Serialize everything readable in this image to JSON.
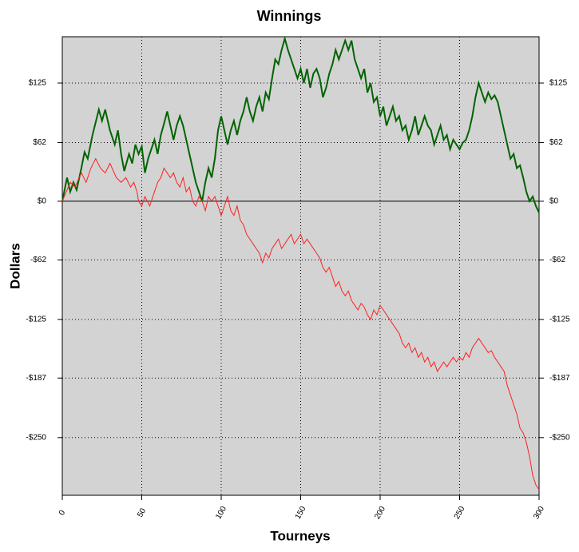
{
  "chart_data": {
    "type": "line",
    "title": "Winnings",
    "xlabel": "Tourneys",
    "ylabel": "Dollars",
    "xlim": [
      0,
      300
    ],
    "xticks": [
      0,
      50,
      100,
      150,
      200,
      250,
      300
    ],
    "ylim": [
      -311,
      174
    ],
    "yticks": [
      {
        "value": -250,
        "label": "-$250"
      },
      {
        "value": -187,
        "label": "-$187"
      },
      {
        "value": -125,
        "label": "-$125"
      },
      {
        "value": -62,
        "label": "-$62"
      },
      {
        "value": 0,
        "label": "$0"
      },
      {
        "value": 62,
        "label": "$62"
      },
      {
        "value": 125,
        "label": "$125"
      }
    ],
    "grid": true,
    "series": [
      {
        "color": "#006400",
        "x": [
          0,
          3,
          5,
          7,
          9,
          12,
          14,
          16,
          19,
          23,
          25,
          27,
          30,
          33,
          35,
          37,
          39,
          42,
          44,
          46,
          48,
          50,
          52,
          54,
          56,
          58,
          60,
          62,
          64,
          66,
          68,
          70,
          72,
          74,
          76,
          78,
          80,
          82,
          84,
          86,
          88,
          90,
          92,
          94,
          96,
          98,
          100,
          102,
          104,
          106,
          108,
          110,
          112,
          114,
          116,
          118,
          120,
          122,
          124,
          126,
          128,
          130,
          132,
          134,
          136,
          138,
          140,
          142,
          144,
          146,
          148,
          150,
          152,
          154,
          156,
          158,
          160,
          162,
          164,
          166,
          168,
          170,
          172,
          174,
          176,
          178,
          180,
          182,
          184,
          186,
          188,
          190,
          192,
          194,
          196,
          198,
          200,
          202,
          204,
          206,
          208,
          210,
          212,
          214,
          216,
          218,
          220,
          222,
          224,
          226,
          228,
          230,
          232,
          234,
          236,
          238,
          240,
          242,
          244,
          246,
          248,
          250,
          252,
          254,
          256,
          258,
          260,
          262,
          264,
          266,
          268,
          270,
          272,
          274,
          276,
          278,
          280,
          282,
          284,
          286,
          288,
          290,
          292,
          294,
          296,
          298,
          300
        ],
        "values": [
          0,
          25,
          10,
          20,
          12,
          35,
          52,
          45,
          70,
          97,
          85,
          97,
          75,
          60,
          75,
          50,
          32,
          50,
          40,
          60,
          50,
          58,
          30,
          45,
          55,
          65,
          50,
          70,
          82,
          95,
          80,
          65,
          80,
          90,
          80,
          65,
          50,
          35,
          20,
          10,
          0,
          20,
          35,
          25,
          45,
          75,
          90,
          75,
          60,
          75,
          85,
          70,
          85,
          95,
          110,
          95,
          85,
          100,
          110,
          95,
          115,
          108,
          130,
          150,
          145,
          160,
          172,
          160,
          150,
          140,
          130,
          140,
          125,
          140,
          120,
          135,
          140,
          130,
          110,
          120,
          135,
          145,
          160,
          150,
          160,
          170,
          160,
          170,
          150,
          140,
          130,
          140,
          115,
          125,
          105,
          110,
          90,
          100,
          80,
          90,
          100,
          85,
          90,
          75,
          80,
          65,
          75,
          90,
          70,
          80,
          90,
          80,
          75,
          60,
          70,
          80,
          65,
          70,
          55,
          65,
          60,
          55,
          62,
          65,
          75,
          90,
          110,
          125,
          115,
          105,
          115,
          108,
          112,
          105,
          90,
          75,
          60,
          45,
          50,
          35,
          38,
          25,
          10,
          0,
          5,
          -5,
          -12
        ]
      },
      {
        "color": "#ff2020",
        "x": [
          0,
          5,
          8,
          12,
          15,
          18,
          21,
          24,
          27,
          30,
          34,
          37,
          40,
          43,
          45,
          47,
          48,
          50,
          52,
          55,
          58,
          60,
          62,
          64,
          66,
          68,
          70,
          72,
          74,
          76,
          78,
          80,
          82,
          84,
          86,
          88,
          90,
          92,
          94,
          96,
          98,
          100,
          102,
          104,
          106,
          108,
          110,
          112,
          114,
          116,
          118,
          120,
          122,
          124,
          126,
          128,
          130,
          132,
          134,
          136,
          138,
          140,
          142,
          144,
          146,
          148,
          150,
          152,
          154,
          156,
          158,
          160,
          162,
          164,
          166,
          168,
          170,
          172,
          174,
          176,
          178,
          180,
          182,
          184,
          186,
          188,
          190,
          192,
          194,
          196,
          198,
          200,
          202,
          204,
          206,
          208,
          210,
          212,
          214,
          216,
          218,
          220,
          222,
          224,
          226,
          228,
          230,
          232,
          234,
          236,
          238,
          240,
          242,
          244,
          246,
          248,
          250,
          252,
          254,
          256,
          258,
          260,
          262,
          264,
          266,
          268,
          270,
          272,
          274,
          276,
          278,
          280,
          282,
          284,
          286,
          288,
          290,
          292,
          294,
          296,
          298,
          300
        ],
        "values": [
          0,
          20,
          15,
          30,
          20,
          35,
          45,
          35,
          30,
          40,
          25,
          20,
          25,
          15,
          20,
          10,
          0,
          -5,
          5,
          -5,
          10,
          20,
          25,
          35,
          30,
          25,
          30,
          20,
          15,
          25,
          10,
          15,
          0,
          -5,
          5,
          0,
          -10,
          5,
          0,
          5,
          -5,
          -15,
          -5,
          5,
          -10,
          -15,
          -5,
          -20,
          -25,
          -35,
          -40,
          -45,
          -50,
          -55,
          -65,
          -55,
          -60,
          -50,
          -45,
          -40,
          -50,
          -45,
          -40,
          -35,
          -45,
          -40,
          -35,
          -45,
          -40,
          -45,
          -50,
          -55,
          -60,
          -70,
          -75,
          -70,
          -80,
          -90,
          -85,
          -95,
          -100,
          -95,
          -105,
          -110,
          -115,
          -108,
          -112,
          -120,
          -125,
          -115,
          -120,
          -110,
          -115,
          -120,
          -125,
          -130,
          -135,
          -140,
          -150,
          -155,
          -150,
          -160,
          -155,
          -165,
          -160,
          -170,
          -165,
          -175,
          -170,
          -180,
          -175,
          -170,
          -175,
          -170,
          -165,
          -170,
          -165,
          -168,
          -160,
          -165,
          -155,
          -150,
          -145,
          -150,
          -155,
          -160,
          -158,
          -165,
          -170,
          -175,
          -180,
          -195,
          -205,
          -215,
          -225,
          -240,
          -245,
          -255,
          -270,
          -290,
          -300,
          -305
        ]
      }
    ]
  }
}
